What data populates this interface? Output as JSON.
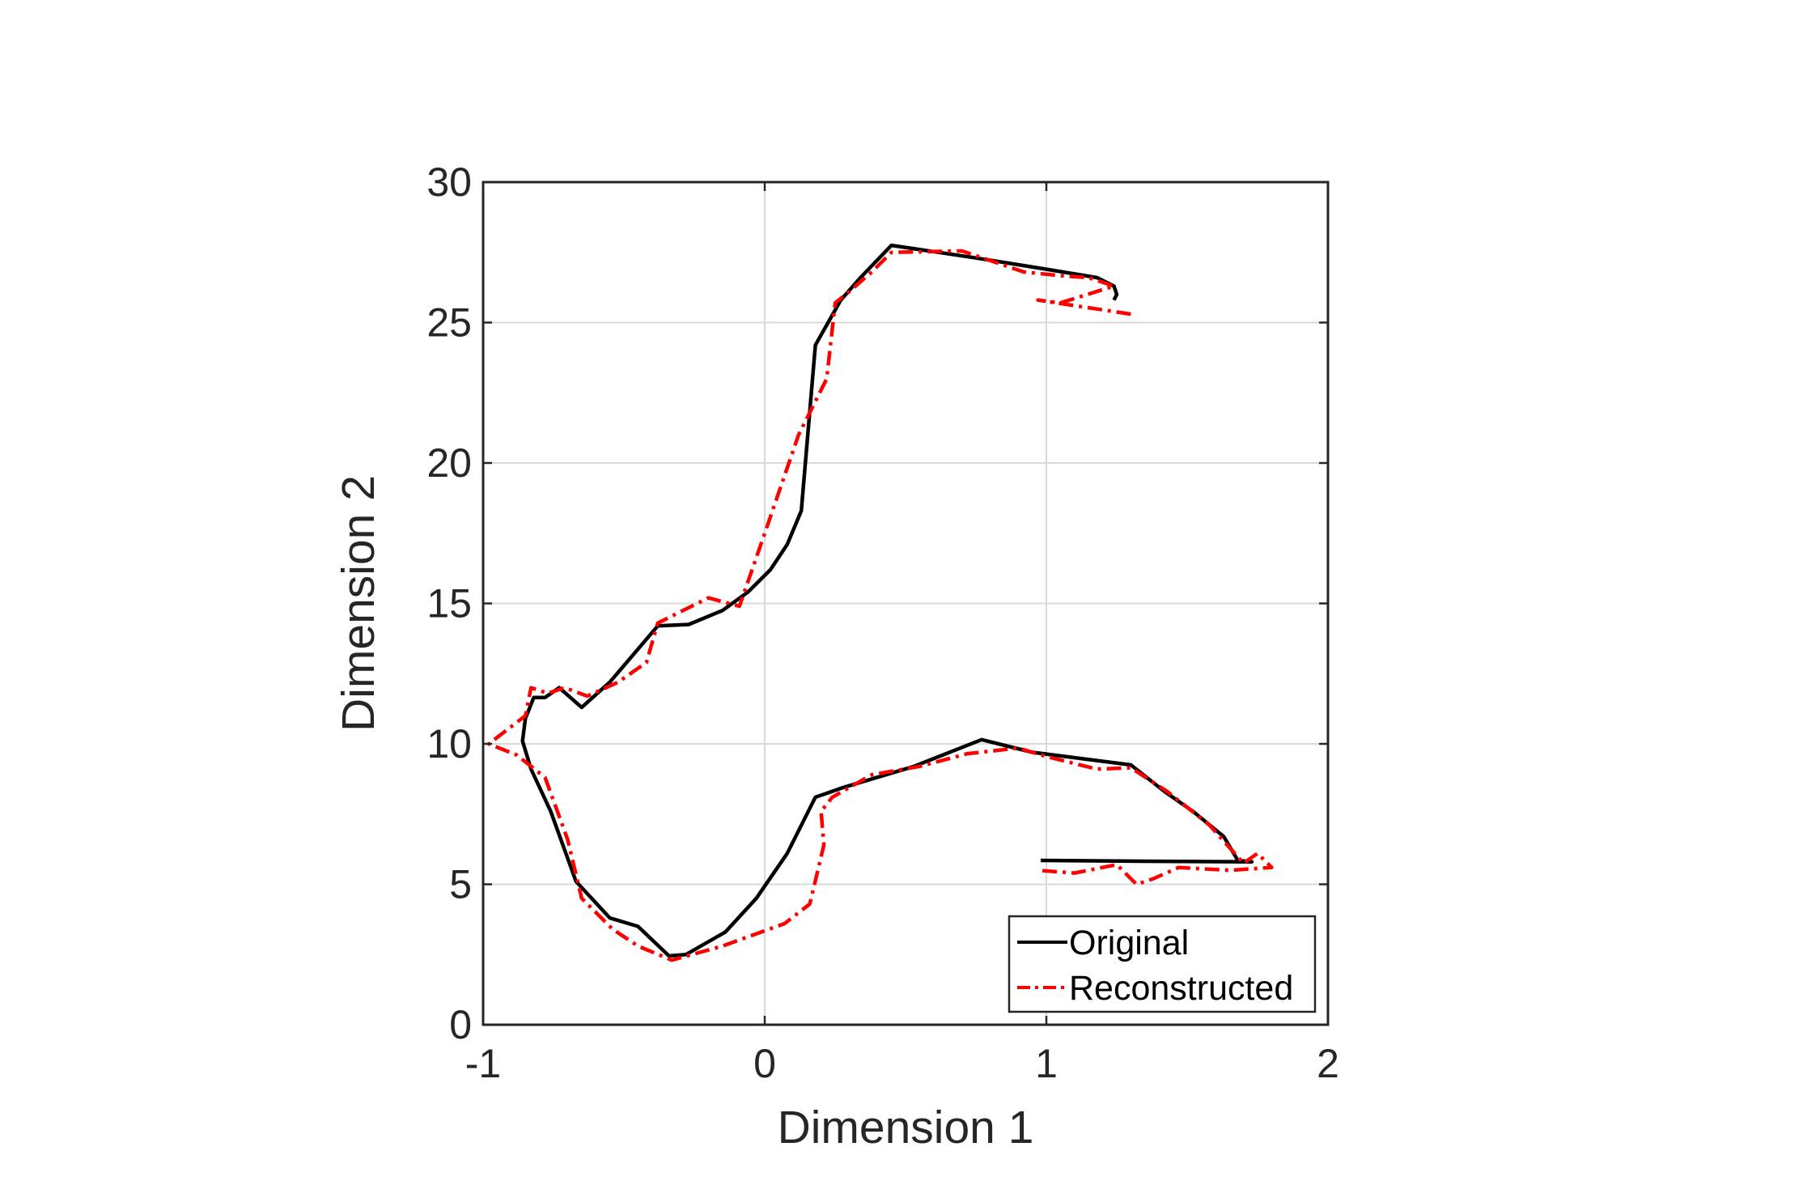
{
  "colors": {
    "original": "#000000",
    "reconstructed": "#ff0000",
    "grid": "#d9d9d9",
    "axis": "#262626"
  },
  "chart_data": {
    "type": "line",
    "title": "",
    "xlabel": "Dimension 1",
    "ylabel": "Dimension 2",
    "xlim": [
      -1,
      2
    ],
    "ylim": [
      0,
      30
    ],
    "xticks": [
      -1,
      0,
      1,
      2
    ],
    "xtick_labels": [
      "-1",
      "0",
      "1",
      "2"
    ],
    "yticks": [
      0,
      5,
      10,
      15,
      20,
      25,
      30
    ],
    "ytick_labels": [
      "0",
      "5",
      "10",
      "15",
      "20",
      "25",
      "30"
    ],
    "grid": true,
    "legend": {
      "location": "bottom-right",
      "entries": [
        "Original",
        "Reconstructed"
      ]
    },
    "series": [
      {
        "name": "Original",
        "style": "solid",
        "points": [
          [
            0.98,
            5.85
          ],
          [
            1.35,
            5.82
          ],
          [
            1.73,
            5.8
          ],
          [
            1.68,
            5.85
          ],
          [
            1.63,
            6.7
          ],
          [
            1.52,
            7.6
          ],
          [
            1.42,
            8.3
          ],
          [
            1.3,
            9.25
          ],
          [
            0.95,
            9.7
          ],
          [
            0.77,
            10.15
          ],
          [
            0.53,
            9.2
          ],
          [
            0.28,
            8.45
          ],
          [
            0.18,
            8.1
          ],
          [
            0.08,
            6.1
          ],
          [
            -0.03,
            4.5
          ],
          [
            -0.14,
            3.3
          ],
          [
            -0.28,
            2.5
          ],
          [
            -0.34,
            2.45
          ],
          [
            -0.45,
            3.5
          ],
          [
            -0.55,
            3.8
          ],
          [
            -0.67,
            5.1
          ],
          [
            -0.76,
            7.6
          ],
          [
            -0.83,
            9.1
          ],
          [
            -0.86,
            10.1
          ],
          [
            -0.85,
            10.9
          ],
          [
            -0.82,
            11.65
          ],
          [
            -0.78,
            11.65
          ],
          [
            -0.73,
            12.0
          ],
          [
            -0.65,
            11.3
          ],
          [
            -0.55,
            12.2
          ],
          [
            -0.38,
            14.2
          ],
          [
            -0.27,
            14.25
          ],
          [
            -0.15,
            14.75
          ],
          [
            -0.06,
            15.4
          ],
          [
            0.02,
            16.2
          ],
          [
            0.08,
            17.1
          ],
          [
            0.13,
            18.3
          ],
          [
            0.18,
            24.2
          ],
          [
            0.27,
            25.8
          ],
          [
            0.34,
            26.6
          ],
          [
            0.45,
            27.75
          ],
          [
            0.75,
            27.3
          ],
          [
            1.0,
            26.9
          ],
          [
            1.18,
            26.6
          ],
          [
            1.24,
            26.3
          ],
          [
            1.25,
            26.0
          ],
          [
            1.24,
            25.8
          ]
        ]
      },
      {
        "name": "Reconstructed",
        "style": "dash-dot",
        "points": [
          [
            1.3,
            25.3
          ],
          [
            0.97,
            25.8
          ],
          [
            1.05,
            25.7
          ],
          [
            1.13,
            25.95
          ],
          [
            1.24,
            26.3
          ],
          [
            1.15,
            26.6
          ],
          [
            1.07,
            26.65
          ],
          [
            0.92,
            26.8
          ],
          [
            0.7,
            27.55
          ],
          [
            0.45,
            27.5
          ],
          [
            0.38,
            26.8
          ],
          [
            0.3,
            26.1
          ],
          [
            0.25,
            25.7
          ],
          [
            0.22,
            23.0
          ],
          [
            0.12,
            21.0
          ],
          [
            0.0,
            17.5
          ],
          [
            -0.09,
            14.9
          ],
          [
            -0.2,
            15.2
          ],
          [
            -0.38,
            14.3
          ],
          [
            -0.42,
            12.9
          ],
          [
            -0.52,
            12.2
          ],
          [
            -0.63,
            11.7
          ],
          [
            -0.71,
            12.0
          ],
          [
            -0.77,
            11.8
          ],
          [
            -0.83,
            12.0
          ],
          [
            -0.85,
            11.0
          ],
          [
            -0.98,
            10.0
          ],
          [
            -0.88,
            9.6
          ],
          [
            -0.78,
            8.8
          ],
          [
            -0.7,
            6.6
          ],
          [
            -0.65,
            4.5
          ],
          [
            -0.54,
            3.4
          ],
          [
            -0.45,
            2.8
          ],
          [
            -0.33,
            2.3
          ],
          [
            -0.15,
            2.8
          ],
          [
            0.07,
            3.6
          ],
          [
            0.16,
            4.3
          ],
          [
            0.21,
            6.4
          ],
          [
            0.2,
            7.6
          ],
          [
            0.24,
            8.1
          ],
          [
            0.38,
            8.9
          ],
          [
            0.55,
            9.2
          ],
          [
            0.72,
            9.65
          ],
          [
            0.9,
            9.85
          ],
          [
            1.0,
            9.55
          ],
          [
            1.18,
            9.1
          ],
          [
            1.3,
            9.15
          ],
          [
            1.43,
            8.3
          ],
          [
            1.58,
            7.1
          ],
          [
            1.7,
            5.75
          ],
          [
            1.75,
            6.1
          ],
          [
            1.8,
            5.6
          ],
          [
            1.65,
            5.5
          ],
          [
            1.47,
            5.6
          ],
          [
            1.38,
            5.2
          ],
          [
            1.32,
            5.0
          ],
          [
            1.25,
            5.7
          ],
          [
            1.1,
            5.4
          ],
          [
            0.97,
            5.5
          ]
        ]
      }
    ]
  }
}
